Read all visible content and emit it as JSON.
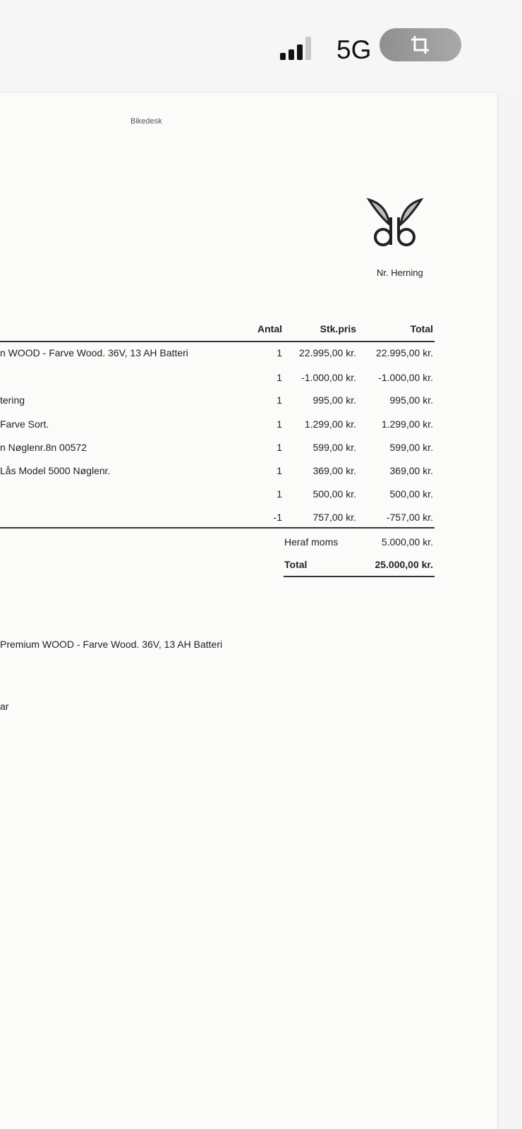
{
  "status_bar": {
    "network": "5G",
    "signal_bars": 3,
    "signal_max": 4,
    "icons": [
      "signal-icon",
      "crop-icon"
    ]
  },
  "document": {
    "header_text": "Bikedesk",
    "logo_text": "ab",
    "store": "Nr. Herning",
    "columns": {
      "qty": "Antal",
      "unit_price": "Stk.pris",
      "total": "Total"
    },
    "rows": [
      {
        "desc": "n WOOD - Farve Wood. 36V, 13 AH Batteri",
        "qty": "1",
        "unit": "22.995,00 kr.",
        "total": "22.995,00 kr."
      },
      {
        "desc": "",
        "qty": "1",
        "unit": "-1.000,00 kr.",
        "total": "-1.000,00 kr."
      },
      {
        "desc": "tering",
        "qty": "1",
        "unit": "995,00 kr.",
        "total": "995,00 kr."
      },
      {
        "desc": "Farve Sort.",
        "qty": "1",
        "unit": "1.299,00 kr.",
        "total": "1.299,00 kr."
      },
      {
        "desc": "n Nøglenr.8n 00572",
        "qty": "1",
        "unit": "599,00 kr.",
        "total": "599,00 kr."
      },
      {
        "desc": "Lås Model 5000 Nøglenr.",
        "qty": "1",
        "unit": "369,00 kr.",
        "total": "369,00 kr."
      },
      {
        "desc": "",
        "qty": "1",
        "unit": "500,00 kr.",
        "total": "500,00 kr."
      },
      {
        "desc": "",
        "qty": "-1",
        "unit": "757,00 kr.",
        "total": "-757,00 kr."
      }
    ],
    "vat_label": "Heraf moms",
    "vat_value": "5.000,00 kr.",
    "total_label": "Total",
    "total_value": "25.000,00 kr.",
    "note_line1": "Premium WOOD - Farve Wood. 36V, 13 AH Batteri",
    "note_line2": "ar"
  }
}
